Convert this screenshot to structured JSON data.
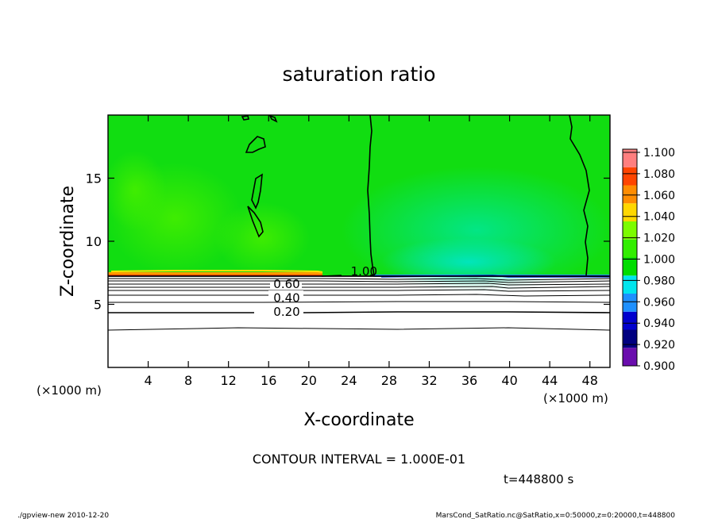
{
  "chart_data": {
    "type": "heatmap",
    "title": "saturation ratio",
    "xlabel": "X-coordinate",
    "ylabel": "Z-coordinate",
    "x_unit_left": "(×1000 m)",
    "x_unit_right": "(×1000 m)",
    "xlim": [
      0,
      50
    ],
    "ylim": [
      0,
      20
    ],
    "x_ticks": [
      4,
      8,
      12,
      16,
      20,
      24,
      28,
      32,
      36,
      40,
      44,
      48
    ],
    "y_ticks": [
      5,
      10,
      15
    ],
    "colorbar": {
      "levels": [
        "0.900",
        "0.920",
        "0.940",
        "0.960",
        "0.980",
        "1.000",
        "1.020",
        "1.040",
        "1.060",
        "1.080",
        "1.100"
      ],
      "colors": [
        "#6a0dad",
        "#000080",
        "#0000cd",
        "#1e90ff",
        "#00e5ee",
        "#00dd00",
        "#32ee00",
        "#7cfc00",
        "#ffd700",
        "#ff8c00",
        "#ff4500",
        "#ff7f7f"
      ]
    },
    "contour_labels": [
      {
        "text": "1.00",
        "x": 25.5,
        "z": 7.6
      },
      {
        "text": "0.60",
        "x": 17.8,
        "z": 6.6
      },
      {
        "text": "0.40",
        "x": 17.8,
        "z": 5.5
      },
      {
        "text": "0.20",
        "x": 17.8,
        "z": 4.4
      }
    ],
    "contour_interval_text": "CONTOUR INTERVAL = 1.000E-01",
    "time_text": "t=448800 s"
  },
  "footer": {
    "left": "./gpview-new  2010-12-20",
    "right": "MarsCond_SatRatio.nc@SatRatio,x=0:50000,z=0:20000,t=448800"
  }
}
